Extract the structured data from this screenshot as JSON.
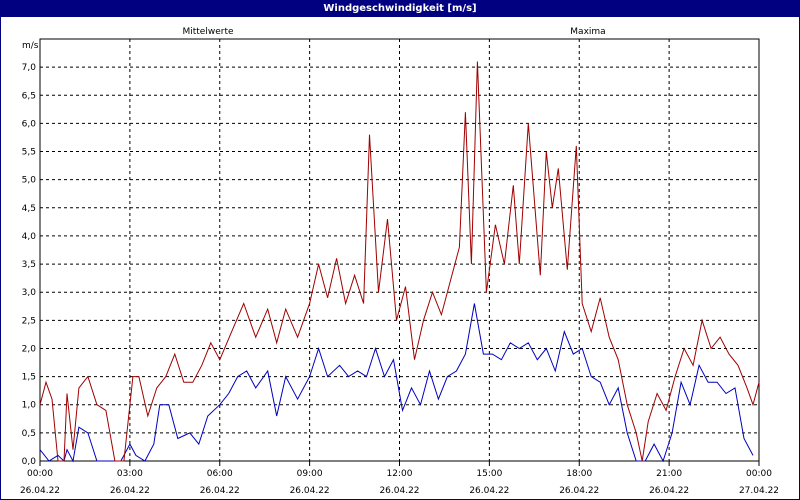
{
  "window": {
    "title": "Windgeschwindigkeit [m/s]"
  },
  "chart_data": {
    "type": "line",
    "title": "Windgeschwindigkeit [m/s]",
    "ylabel": "m/s",
    "ylim": [
      0,
      7.5
    ],
    "xlim_hours": [
      0,
      24
    ],
    "grid": true,
    "y_ticks": [
      "0,0",
      "0,5",
      "1,0",
      "1,5",
      "2,0",
      "2,5",
      "3,0",
      "3,5",
      "4,0",
      "4,5",
      "5,0",
      "5,5",
      "6,0",
      "6,5",
      "7,0"
    ],
    "x_ticks": [
      {
        "time": "00:00",
        "date": "26.04.22"
      },
      {
        "time": "03:00",
        "date": "26.04.22"
      },
      {
        "time": "06:00",
        "date": "26.04.22"
      },
      {
        "time": "09:00",
        "date": "26.04.22"
      },
      {
        "time": "12:00",
        "date": "26.04.22"
      },
      {
        "time": "15:00",
        "date": "26.04.22"
      },
      {
        "time": "18:00",
        "date": "26.04.22"
      },
      {
        "time": "21:00",
        "date": "26.04.22"
      },
      {
        "time": "00:00",
        "date": "27.04.22"
      }
    ],
    "series": [
      {
        "name": "Mittelwerte",
        "color": "#0000c0",
        "points": [
          [
            0,
            0.2
          ],
          [
            0.3,
            0.0
          ],
          [
            0.6,
            0.1
          ],
          [
            0.8,
            0.0
          ],
          [
            0.9,
            0.2
          ],
          [
            1.1,
            0.0
          ],
          [
            1.3,
            0.6
          ],
          [
            1.6,
            0.5
          ],
          [
            1.9,
            0.0
          ],
          [
            2.3,
            0.0
          ],
          [
            2.7,
            0.0
          ],
          [
            3.0,
            0.3
          ],
          [
            3.2,
            0.1
          ],
          [
            3.5,
            0.0
          ],
          [
            3.8,
            0.3
          ],
          [
            4.0,
            1.0
          ],
          [
            4.3,
            1.0
          ],
          [
            4.6,
            0.4
          ],
          [
            5.0,
            0.5
          ],
          [
            5.3,
            0.3
          ],
          [
            5.6,
            0.8
          ],
          [
            6.0,
            1.0
          ],
          [
            6.3,
            1.2
          ],
          [
            6.6,
            1.5
          ],
          [
            6.9,
            1.6
          ],
          [
            7.2,
            1.3
          ],
          [
            7.6,
            1.6
          ],
          [
            7.9,
            0.8
          ],
          [
            8.2,
            1.5
          ],
          [
            8.6,
            1.1
          ],
          [
            9.0,
            1.5
          ],
          [
            9.3,
            2.0
          ],
          [
            9.6,
            1.5
          ],
          [
            10.0,
            1.7
          ],
          [
            10.3,
            1.5
          ],
          [
            10.6,
            1.6
          ],
          [
            10.9,
            1.5
          ],
          [
            11.2,
            2.0
          ],
          [
            11.5,
            1.5
          ],
          [
            11.8,
            1.8
          ],
          [
            12.1,
            0.9
          ],
          [
            12.4,
            1.3
          ],
          [
            12.7,
            1.0
          ],
          [
            13.0,
            1.6
          ],
          [
            13.3,
            1.1
          ],
          [
            13.6,
            1.5
          ],
          [
            13.9,
            1.6
          ],
          [
            14.2,
            1.9
          ],
          [
            14.5,
            2.8
          ],
          [
            14.8,
            1.9
          ],
          [
            15.1,
            1.9
          ],
          [
            15.4,
            1.8
          ],
          [
            15.7,
            2.1
          ],
          [
            16.0,
            2.0
          ],
          [
            16.3,
            2.1
          ],
          [
            16.6,
            1.8
          ],
          [
            16.9,
            2.0
          ],
          [
            17.2,
            1.6
          ],
          [
            17.5,
            2.3
          ],
          [
            17.8,
            1.9
          ],
          [
            18.1,
            2.0
          ],
          [
            18.4,
            1.5
          ],
          [
            18.7,
            1.4
          ],
          [
            19.0,
            1.0
          ],
          [
            19.3,
            1.3
          ],
          [
            19.6,
            0.5
          ],
          [
            19.9,
            0.0
          ],
          [
            20.2,
            0.0
          ],
          [
            20.5,
            0.3
          ],
          [
            20.8,
            0.0
          ],
          [
            21.1,
            0.5
          ],
          [
            21.4,
            1.4
          ],
          [
            21.7,
            1.0
          ],
          [
            22.0,
            1.7
          ],
          [
            22.3,
            1.4
          ],
          [
            22.6,
            1.4
          ],
          [
            22.9,
            1.2
          ],
          [
            23.2,
            1.3
          ],
          [
            23.5,
            0.4
          ],
          [
            23.8,
            0.1
          ]
        ]
      },
      {
        "name": "Maxima",
        "color": "#a00000",
        "points": [
          [
            0,
            1.0
          ],
          [
            0.2,
            1.4
          ],
          [
            0.4,
            1.1
          ],
          [
            0.6,
            0.0
          ],
          [
            0.8,
            0.0
          ],
          [
            0.9,
            1.2
          ],
          [
            1.1,
            0.2
          ],
          [
            1.3,
            1.3
          ],
          [
            1.6,
            1.5
          ],
          [
            1.9,
            1.0
          ],
          [
            2.2,
            0.9
          ],
          [
            2.5,
            0.0
          ],
          [
            2.8,
            0.0
          ],
          [
            3.1,
            1.5
          ],
          [
            3.3,
            1.5
          ],
          [
            3.6,
            0.8
          ],
          [
            3.9,
            1.3
          ],
          [
            4.2,
            1.5
          ],
          [
            4.5,
            1.9
          ],
          [
            4.8,
            1.4
          ],
          [
            5.1,
            1.4
          ],
          [
            5.4,
            1.7
          ],
          [
            5.7,
            2.1
          ],
          [
            6.0,
            1.8
          ],
          [
            6.4,
            2.3
          ],
          [
            6.8,
            2.8
          ],
          [
            7.2,
            2.2
          ],
          [
            7.6,
            2.7
          ],
          [
            7.9,
            2.1
          ],
          [
            8.2,
            2.7
          ],
          [
            8.6,
            2.2
          ],
          [
            9.0,
            2.8
          ],
          [
            9.3,
            3.5
          ],
          [
            9.6,
            2.9
          ],
          [
            9.9,
            3.6
          ],
          [
            10.2,
            2.8
          ],
          [
            10.5,
            3.3
          ],
          [
            10.8,
            2.8
          ],
          [
            11.0,
            5.8
          ],
          [
            11.3,
            3.0
          ],
          [
            11.6,
            4.3
          ],
          [
            11.9,
            2.5
          ],
          [
            12.2,
            3.1
          ],
          [
            12.5,
            1.8
          ],
          [
            12.8,
            2.5
          ],
          [
            13.1,
            3.0
          ],
          [
            13.4,
            2.6
          ],
          [
            13.7,
            3.2
          ],
          [
            14.0,
            3.8
          ],
          [
            14.2,
            6.2
          ],
          [
            14.4,
            3.5
          ],
          [
            14.6,
            7.1
          ],
          [
            14.9,
            3.0
          ],
          [
            15.2,
            4.2
          ],
          [
            15.5,
            3.5
          ],
          [
            15.8,
            4.9
          ],
          [
            16.0,
            3.5
          ],
          [
            16.3,
            6.0
          ],
          [
            16.7,
            3.3
          ],
          [
            16.9,
            5.5
          ],
          [
            17.1,
            4.5
          ],
          [
            17.3,
            5.2
          ],
          [
            17.6,
            3.4
          ],
          [
            17.9,
            5.6
          ],
          [
            18.1,
            2.8
          ],
          [
            18.4,
            2.3
          ],
          [
            18.7,
            2.9
          ],
          [
            19.0,
            2.2
          ],
          [
            19.3,
            1.8
          ],
          [
            19.6,
            1.0
          ],
          [
            19.9,
            0.5
          ],
          [
            20.1,
            0.0
          ],
          [
            20.3,
            0.7
          ],
          [
            20.6,
            1.2
          ],
          [
            20.9,
            0.9
          ],
          [
            21.2,
            1.5
          ],
          [
            21.5,
            2.0
          ],
          [
            21.8,
            1.7
          ],
          [
            22.1,
            2.5
          ],
          [
            22.4,
            2.0
          ],
          [
            22.7,
            2.2
          ],
          [
            23.0,
            1.9
          ],
          [
            23.3,
            1.7
          ],
          [
            23.6,
            1.3
          ],
          [
            23.8,
            1.0
          ],
          [
            24.0,
            1.4
          ]
        ]
      }
    ]
  }
}
